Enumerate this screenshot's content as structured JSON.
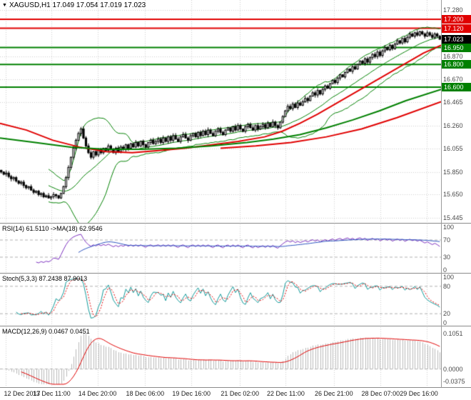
{
  "window": {
    "title": "XAGUSD,H1 17.049 17.054 17.019 17.023",
    "dropdown_icon": "▼"
  },
  "chart_data": {
    "type": "candlestick",
    "symbol": "XAGUSD",
    "timeframe": "H1",
    "quote": {
      "open": 17.049,
      "high": 17.054,
      "low": 17.019,
      "close": 17.023
    },
    "grid": true,
    "background": "#ffffff",
    "grid_color": "#cfcfcf",
    "candle_up_fill": "#ffffff",
    "candle_down_fill": "#000000",
    "candle_border": "#000000",
    "time_labels": [
      {
        "text": "12 Dec 2017",
        "pos": 0.013
      },
      {
        "text": "13 Dec 11:00",
        "pos": 0.117
      },
      {
        "text": "14 Dec 20:00",
        "pos": 0.221
      },
      {
        "text": "18 Dec 06:00",
        "pos": 0.329
      },
      {
        "text": "19 Dec 16:00",
        "pos": 0.434
      },
      {
        "text": "21 Dec 02:00",
        "pos": 0.544
      },
      {
        "text": "22 Dec 11:00",
        "pos": 0.648
      },
      {
        "text": "26 Dec 21:00",
        "pos": 0.757
      },
      {
        "text": "28 Dec 07:00",
        "pos": 0.863
      },
      {
        "text": "29 Dec 16:00",
        "pos": 0.968
      }
    ],
    "main": {
      "draw_range": [
        15.4,
        17.37
      ],
      "axis_labels": [
        {
          "text": "17.280",
          "value": 17.28
        },
        {
          "text": "16.870",
          "value": 16.87
        },
        {
          "text": "16.670",
          "value": 16.67
        },
        {
          "text": "16.465",
          "value": 16.465
        },
        {
          "text": "16.260",
          "value": 16.26
        },
        {
          "text": "16.055",
          "value": 16.055
        },
        {
          "text": "15.850",
          "value": 15.85
        },
        {
          "text": "15.650",
          "value": 15.65
        },
        {
          "text": "15.445",
          "value": 15.445
        }
      ],
      "levels": [
        {
          "text": "17.200",
          "value": 17.2,
          "color": "#e00000"
        },
        {
          "text": "17.120",
          "value": 17.12,
          "color": "#e00000"
        },
        {
          "text": "16.950",
          "value": 16.95,
          "color": "#008000"
        },
        {
          "text": "16.800",
          "value": 16.8,
          "color": "#008000"
        },
        {
          "text": "16.600",
          "value": 16.6,
          "color": "#008000"
        }
      ],
      "current": {
        "text": "17.023",
        "value": 17.023,
        "color": "#000000"
      },
      "bollinger": {
        "period": 20,
        "deviation": 2,
        "color": "#008000"
      },
      "overlays": [
        {
          "name": "ma-red-fast",
          "color": "#e00000",
          "width": 2,
          "points": [
            [
              0,
              16.28
            ],
            [
              0.06,
              16.22
            ],
            [
              0.12,
              16.13
            ],
            [
              0.18,
              16.07
            ],
            [
              0.24,
              16.03
            ],
            [
              0.3,
              16.02
            ],
            [
              0.36,
              16.04
            ],
            [
              0.42,
              16.06
            ],
            [
              0.48,
              16.09
            ],
            [
              0.54,
              16.12
            ],
            [
              0.6,
              16.16
            ],
            [
              0.64,
              16.21
            ],
            [
              0.68,
              16.28
            ],
            [
              0.72,
              16.36
            ],
            [
              0.76,
              16.45
            ],
            [
              0.8,
              16.54
            ],
            [
              0.84,
              16.63
            ],
            [
              0.88,
              16.72
            ],
            [
              0.92,
              16.81
            ],
            [
              0.96,
              16.9
            ],
            [
              1.0,
              16.97
            ]
          ]
        },
        {
          "name": "ma-green-slow",
          "color": "#008000",
          "width": 2,
          "points": [
            [
              0,
              16.15
            ],
            [
              0.08,
              16.11
            ],
            [
              0.16,
              16.07
            ],
            [
              0.24,
              16.05
            ],
            [
              0.32,
              16.05
            ],
            [
              0.4,
              16.06
            ],
            [
              0.48,
              16.08
            ],
            [
              0.56,
              16.11
            ],
            [
              0.62,
              16.14
            ],
            [
              0.68,
              16.18
            ],
            [
              0.74,
              16.24
            ],
            [
              0.8,
              16.31
            ],
            [
              0.86,
              16.39
            ],
            [
              0.92,
              16.48
            ],
            [
              1.0,
              16.58
            ]
          ]
        },
        {
          "name": "ma-red-slow",
          "color": "#e00000",
          "width": 2,
          "points": [
            [
              0.5,
              16.06
            ],
            [
              0.58,
              16.08
            ],
            [
              0.66,
              16.11
            ],
            [
              0.74,
              16.16
            ],
            [
              0.82,
              16.23
            ],
            [
              0.9,
              16.33
            ],
            [
              1.0,
              16.47
            ]
          ]
        }
      ],
      "closes": [
        15.85,
        15.83,
        15.84,
        15.81,
        15.79,
        15.8,
        15.77,
        15.75,
        15.76,
        15.73,
        15.71,
        15.72,
        15.69,
        15.67,
        15.68,
        15.65,
        15.66,
        15.63,
        15.64,
        15.62,
        15.63,
        15.65,
        15.64,
        15.62,
        15.66,
        15.72,
        15.8,
        15.89,
        15.98,
        16.06,
        16.13,
        16.19,
        16.23,
        16.15,
        16.08,
        16.02,
        15.98,
        16.03,
        16.0,
        16.05,
        16.02,
        16.06,
        16.04,
        16.08,
        16.05,
        16.02,
        16.06,
        16.03,
        16.07,
        16.05,
        16.09,
        16.06,
        16.1,
        16.07,
        16.11,
        16.08,
        16.12,
        16.09,
        16.07,
        16.11,
        16.13,
        16.1,
        16.12,
        16.14,
        16.11,
        16.15,
        16.12,
        16.16,
        16.13,
        16.17,
        16.14,
        16.12,
        16.16,
        16.18,
        16.15,
        16.13,
        16.17,
        16.19,
        16.16,
        16.2,
        16.17,
        16.21,
        16.18,
        16.22,
        16.19,
        16.17,
        16.21,
        16.23,
        16.2,
        16.18,
        16.22,
        16.24,
        16.21,
        16.25,
        16.22,
        16.26,
        16.23,
        16.21,
        16.25,
        16.27,
        16.24,
        16.22,
        16.26,
        16.23,
        16.25,
        16.27,
        16.24,
        16.28,
        16.25,
        16.29,
        16.26,
        16.24,
        16.29,
        16.34,
        16.39,
        16.43,
        16.41,
        16.45,
        16.42,
        16.46,
        16.44,
        16.47,
        16.5,
        16.48,
        16.52,
        16.55,
        16.53,
        16.57,
        16.54,
        16.58,
        16.61,
        16.59,
        16.63,
        16.66,
        16.64,
        16.68,
        16.71,
        16.69,
        16.73,
        16.76,
        16.74,
        16.78,
        16.76,
        16.8,
        16.83,
        16.81,
        16.85,
        16.82,
        16.86,
        16.89,
        16.87,
        16.91,
        16.88,
        16.92,
        16.95,
        16.93,
        16.97,
        16.94,
        16.98,
        17.01,
        16.99,
        17.03,
        17.0,
        17.04,
        17.07,
        17.05,
        17.08,
        17.06,
        17.09,
        17.07,
        17.05,
        17.08,
        17.06,
        17.04,
        17.07,
        17.05,
        17.023
      ]
    },
    "rsi": {
      "label": "RSI(14) 61.5110 ->MA(18) 62.9546",
      "period": 14,
      "ma_period": 18,
      "current": 61.511,
      "ma_current": 62.9546,
      "levels": [
        70,
        30
      ],
      "axis_labels": [
        {
          "text": "100",
          "value": 100
        },
        {
          "text": "70",
          "value": 70
        },
        {
          "text": "30",
          "value": 30
        },
        {
          "text": "0",
          "value": 0
        }
      ],
      "color": "#7b2fbe",
      "ma_color": "#2a52be"
    },
    "stoch": {
      "label": "Stoch(5,3,3) 87.2438 87.9013",
      "k": 5,
      "slowing": 3,
      "d": 3,
      "current": 87.2438,
      "signal_current": 87.9013,
      "levels": [
        80,
        20
      ],
      "axis_labels": [
        {
          "text": "100",
          "value": 100
        },
        {
          "text": "80",
          "value": 80
        },
        {
          "text": "20",
          "value": 20
        },
        {
          "text": "0",
          "value": 0
        }
      ],
      "color": "#119999",
      "signal_color": "#e00000"
    },
    "macd": {
      "label": "MACD(12,26,9) 0.0467 0.0451",
      "fast": 12,
      "slow": 26,
      "signal": 9,
      "current": 0.0467,
      "signal_current": 0.0451,
      "draw_range": [
        -0.045,
        0.115
      ],
      "max_display": 0.1051,
      "axis_labels": [
        {
          "text": "0.1051",
          "value": 0.1051
        },
        {
          "text": "0.0000",
          "value": 0
        },
        {
          "text": "-0.0375",
          "value": -0.0375
        }
      ],
      "hist_color": "#b8b8b8",
      "signal_color": "#e00000"
    }
  }
}
